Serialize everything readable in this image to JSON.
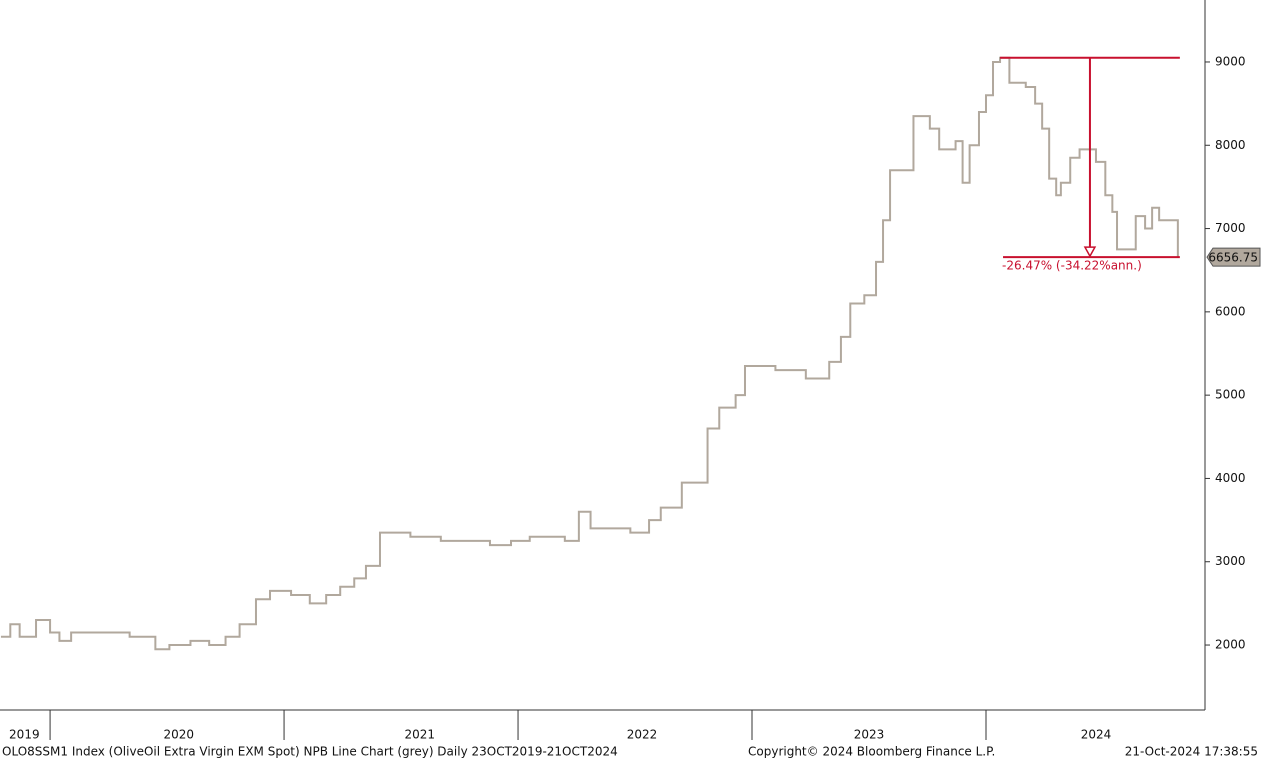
{
  "chart_data": {
    "type": "line",
    "step": true,
    "color": "#b1a89d",
    "x": [
      2019.79,
      2019.83,
      2019.87,
      2019.94,
      2020.0,
      2020.04,
      2020.09,
      2020.15,
      2020.21,
      2020.28,
      2020.34,
      2020.41,
      2020.45,
      2020.51,
      2020.6,
      2020.68,
      2020.75,
      2020.81,
      2020.88,
      2020.94,
      2021.03,
      2021.11,
      2021.18,
      2021.24,
      2021.3,
      2021.35,
      2021.41,
      2021.47,
      2021.54,
      2021.67,
      2021.79,
      2021.88,
      2021.97,
      2022.05,
      2022.14,
      2022.2,
      2022.26,
      2022.31,
      2022.39,
      2022.48,
      2022.56,
      2022.61,
      2022.67,
      2022.7,
      2022.78,
      2022.81,
      2022.86,
      2022.93,
      2022.97,
      2023.03,
      2023.1,
      2023.16,
      2023.23,
      2023.29,
      2023.33,
      2023.38,
      2023.42,
      2023.48,
      2023.53,
      2023.56,
      2023.59,
      2023.65,
      2023.69,
      2023.76,
      2023.8,
      2023.87,
      2023.9,
      2023.93,
      2023.97,
      2024.0,
      2024.03,
      2024.06,
      2024.1,
      2024.17,
      2024.21,
      2024.24,
      2024.27,
      2024.3,
      2024.32,
      2024.36,
      2024.4,
      2024.47,
      2024.51,
      2024.54,
      2024.56,
      2024.64,
      2024.68,
      2024.71,
      2024.74,
      2024.79,
      2024.82
    ],
    "values": [
      2100,
      2250,
      2100,
      2300,
      2150,
      2050,
      2150,
      2150,
      2150,
      2150,
      2100,
      2100,
      1950,
      2000,
      2050,
      2000,
      2100,
      2250,
      2550,
      2650,
      2600,
      2500,
      2600,
      2700,
      2800,
      2950,
      3350,
      3350,
      3300,
      3250,
      3250,
      3200,
      3250,
      3300,
      3300,
      3250,
      3600,
      3400,
      3400,
      3350,
      3500,
      3650,
      3650,
      3950,
      3950,
      4600,
      4850,
      5000,
      5350,
      5350,
      5300,
      5300,
      5200,
      5200,
      5400,
      5700,
      6100,
      6200,
      6600,
      7100,
      7700,
      7700,
      8350,
      8200,
      7950,
      8050,
      7550,
      8000,
      8400,
      8600,
      9000,
      9050,
      8750,
      8700,
      8500,
      8200,
      7600,
      7400,
      7550,
      7850,
      7950,
      7800,
      7400,
      7200,
      6750,
      7150,
      7000,
      7250,
      7100,
      7100,
      6656.75
    ],
    "xlim": [
      2019.786,
      2024.936
    ],
    "ylim": [
      1220,
      9744
    ],
    "yticks": [
      2000,
      3000,
      4000,
      5000,
      6000,
      7000,
      8000,
      9000
    ],
    "xticks": [
      {
        "value": 2019.89,
        "label": "2019"
      },
      {
        "value": 2020.55,
        "label": "2020"
      },
      {
        "value": 2021.58,
        "label": "2021"
      },
      {
        "value": 2022.53,
        "label": "2022"
      },
      {
        "value": 2023.5,
        "label": "2023"
      },
      {
        "value": 2024.47,
        "label": "2024"
      }
    ],
    "year_boundaries": [
      2020,
      2021,
      2022,
      2023,
      2024
    ],
    "drawdown": {
      "from": 9050,
      "to": 6656.75,
      "start_x": 2024.06,
      "text": "-26.47% (-34.22%ann.)",
      "color": "#c8102e"
    }
  },
  "footer": {
    "left": "OLO8SSM1 Index (OliveOil Extra Virgin EXM Spot) NPB Line Chart (grey)  Daily 23OCT2019-21OCT2024",
    "middle": "Copyright© 2024 Bloomberg Finance L.P.",
    "right": "21-Oct-2024 17:38:55"
  }
}
